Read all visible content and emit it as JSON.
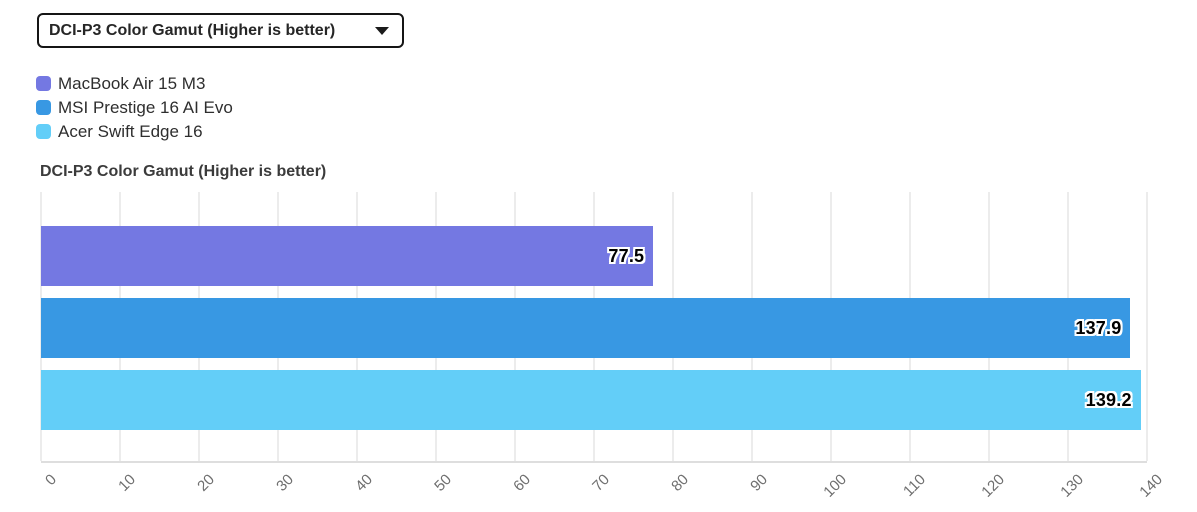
{
  "dropdown": {
    "selected": "DCI-P3 Color Gamut (Higher is better)"
  },
  "chart_data": {
    "type": "bar",
    "orientation": "horizontal",
    "title": "DCI-P3 Color Gamut (Higher is better)",
    "categories": [
      "MacBook Air 15 M3",
      "MSI Prestige 16 AI Evo",
      "Acer Swift Edge 16"
    ],
    "values": [
      77.5,
      137.9,
      139.2
    ],
    "value_labels": [
      "77.5",
      "137.9",
      "139.2"
    ],
    "colors": [
      "#7478e2",
      "#3898e3",
      "#63cef8"
    ],
    "xlim": [
      0,
      140
    ],
    "xticks": [
      0,
      10,
      20,
      30,
      40,
      50,
      60,
      70,
      80,
      90,
      100,
      110,
      120,
      130,
      140
    ],
    "grid": true,
    "legend_position": "top-left",
    "xlabel": "",
    "ylabel": ""
  },
  "style_colors": {
    "gridline": "#ececec",
    "axis_line": "#dedede",
    "tick_text": "#6e6e6e",
    "title_text": "#3b3b3b",
    "legend_text": "#2e2e2e",
    "dropdown_border": "#151515",
    "value_text": "#000000",
    "value_outline": "#ffffff"
  }
}
